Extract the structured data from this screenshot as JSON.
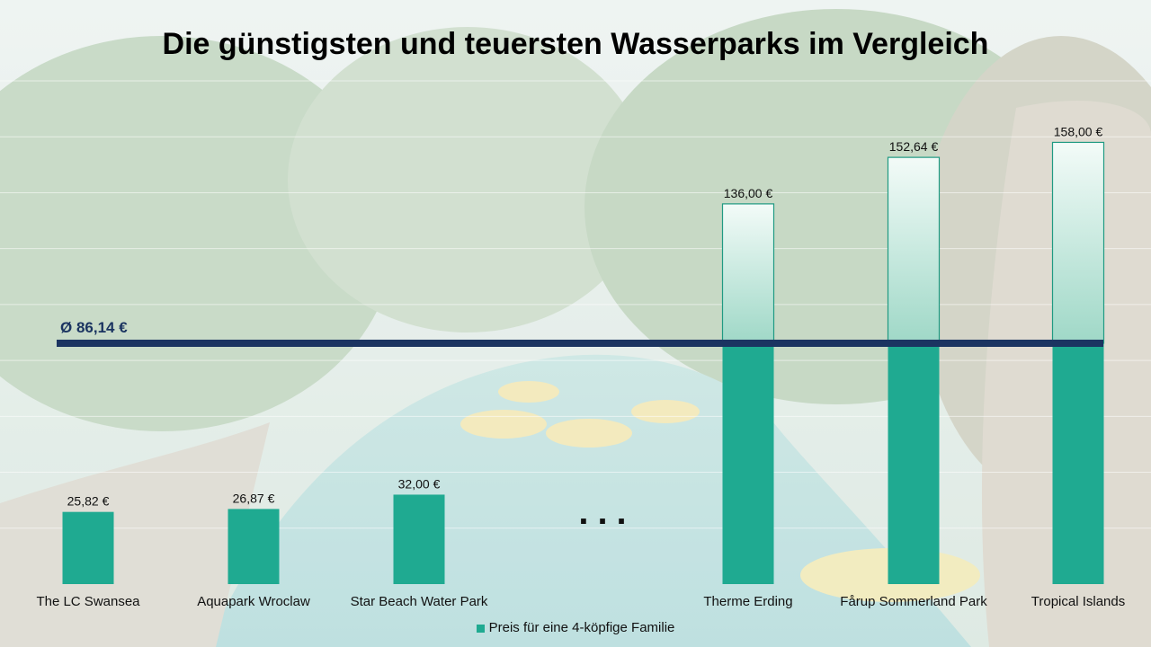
{
  "title": "Die günstigsten und teuersten Wasserparks im Vergleich",
  "average_label": "Ø 86,14 €",
  "ellipsis": "...",
  "legend_label": "Preis für eine 4-köpfige Familie",
  "colors": {
    "bar": "#1faa91",
    "bar_light": "#e8f6f1",
    "bar_light_top": "#f3fbf8",
    "bar_light_bottom": "#9fd8c7",
    "bar_outline": "#1f9a82",
    "average_line": "#1b3461",
    "gridline": "#ffffff"
  },
  "chart_data": {
    "type": "bar",
    "categories": [
      "The LC Swansea",
      "Aquapark Wroclaw",
      "Star Beach Water Park",
      "Therme Erding",
      "Fårup Sommerland Park",
      "Tropical Islands"
    ],
    "series": [
      {
        "name": "Preis für eine 4-köpfige Familie",
        "values": [
          25.82,
          26.87,
          32.0,
          136.0,
          152.64,
          158.0
        ],
        "labels": [
          "25,82 €",
          "26,87 €",
          "32,00 €",
          "136,00 €",
          "152,64 €",
          "158,00 €"
        ]
      }
    ],
    "average": 86.14,
    "ylim": [
      0,
      180
    ],
    "grid": true,
    "legend": "bottom"
  }
}
